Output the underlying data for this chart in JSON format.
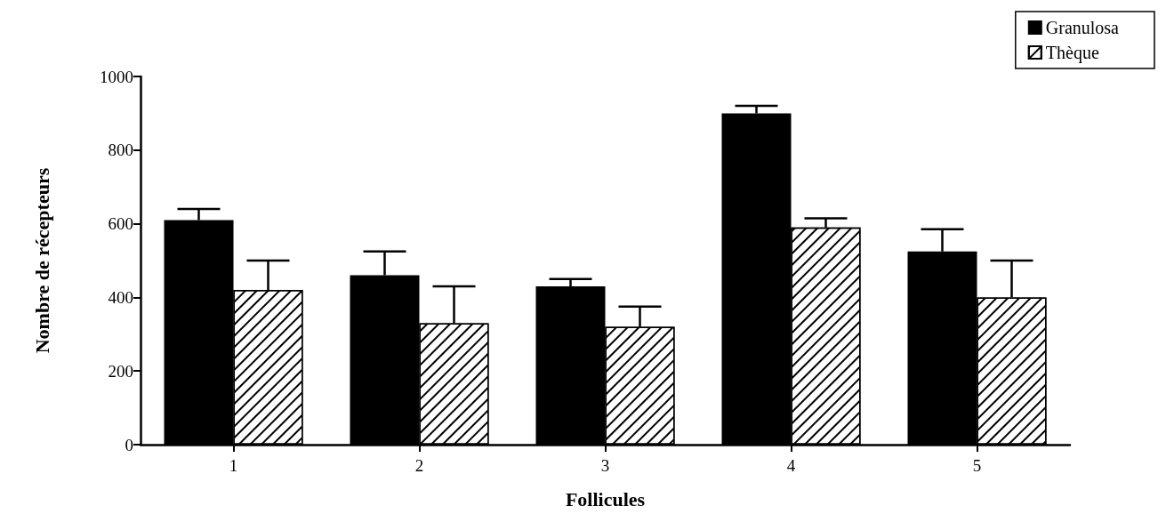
{
  "chart_data": {
    "type": "bar",
    "xlabel": "Follicules",
    "ylabel": "Nombre de récepteurs",
    "categories": [
      "1",
      "2",
      "3",
      "4",
      "5"
    ],
    "series": [
      {
        "name": "Granulosa",
        "color": "#000000",
        "values": [
          610,
          460,
          430,
          900,
          525
        ],
        "errors": [
          [
            610,
            640
          ],
          [
            460,
            525
          ],
          [
            430,
            450
          ],
          [
            900,
            920
          ],
          [
            525,
            585
          ]
        ]
      },
      {
        "name": "Thèque",
        "color": "#ffffff",
        "values": [
          420,
          330,
          320,
          590,
          400
        ],
        "errors": [
          [
            420,
            500
          ],
          [
            330,
            430
          ],
          [
            320,
            375
          ],
          [
            590,
            615
          ],
          [
            400,
            500
          ]
        ]
      }
    ],
    "ylim": [
      0,
      1000
    ],
    "yticks": [
      0,
      200,
      400,
      600,
      800,
      {
        "value": 1000,
        "label": "1000"
      }
    ],
    "grid": false,
    "legend": "top right"
  }
}
